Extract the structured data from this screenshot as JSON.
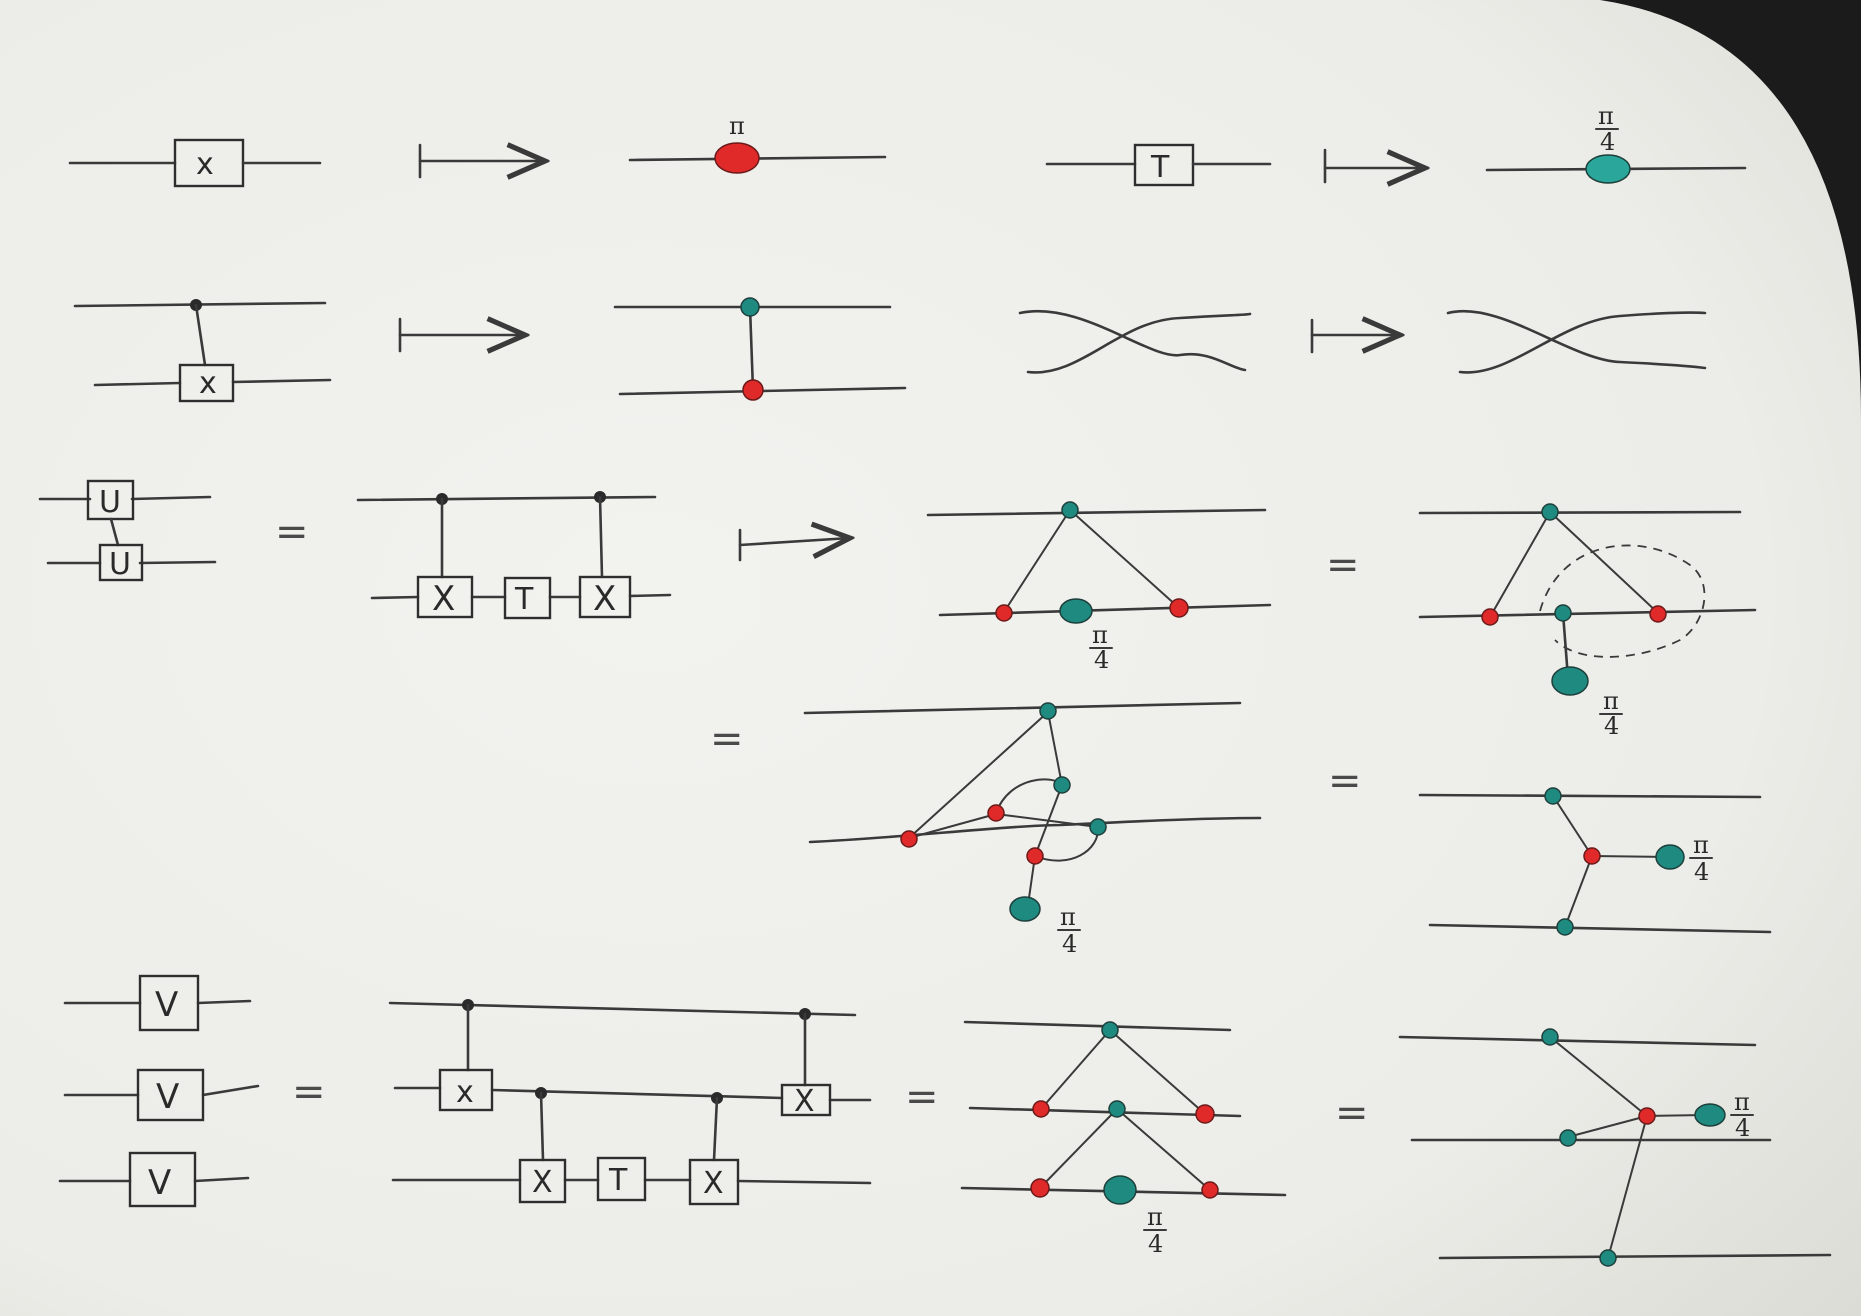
{
  "diagram": {
    "gates": {
      "x": "x",
      "t": "T",
      "X": "X",
      "u": "U",
      "v": "V"
    },
    "relations": {
      "equals": "=",
      "maps_to": "↦"
    },
    "phases": {
      "pi": "π",
      "pi_over_4_num": "π",
      "pi_over_4_den": "4"
    },
    "colors": {
      "paper": "#eeeeea",
      "z_spider": "#1f8a80",
      "x_spider": "#e02a2a",
      "ink": "#3a3a3a"
    }
  }
}
